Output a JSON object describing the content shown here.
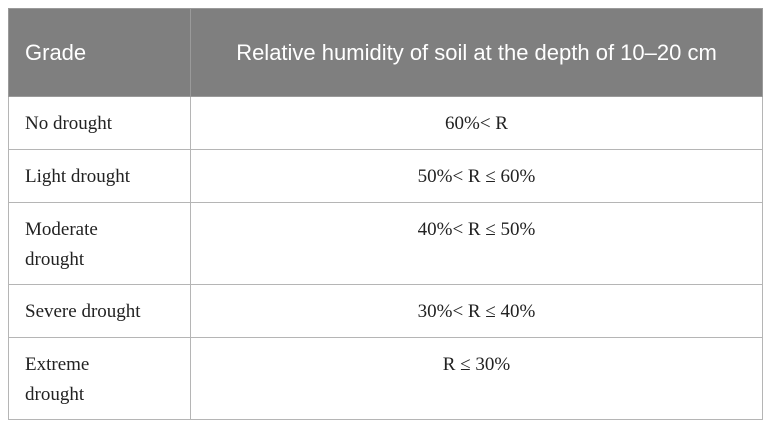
{
  "table": {
    "header": [
      "Grade",
      "Relative humidity of soil at the depth of 10–20 cm"
    ],
    "rows": [
      [
        "No drought",
        "60%< R"
      ],
      [
        "Light drought",
        "50%< R ≤ 60%"
      ],
      [
        "Moderate drought",
        "40%< R ≤ 50%"
      ],
      [
        "Severe drought",
        "30%< R ≤ 40%"
      ],
      [
        "Extreme drought",
        "R ≤ 30%"
      ]
    ]
  }
}
